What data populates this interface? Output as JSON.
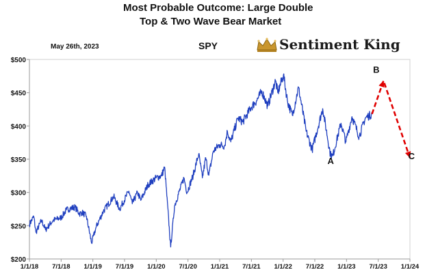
{
  "header": {
    "title_line1": "Most Probable Outcome: Large Double",
    "title_line2": "Top & Two Wave Bear Market",
    "date": "May 26th, 2023",
    "ticker": "SPY",
    "brand": "Sentiment King"
  },
  "chart_data": {
    "type": "line",
    "title": "Most Probable Outcome: Large Double Top & Two Wave Bear Market",
    "xlabel": "",
    "ylabel": "",
    "ylim": [
      200,
      500
    ],
    "yticks": [
      "$200",
      "$250",
      "$300",
      "$350",
      "$400",
      "$450",
      "$500"
    ],
    "ytick_values": [
      200,
      250,
      300,
      350,
      400,
      450,
      500
    ],
    "xticks": [
      "1/1/18",
      "7/1/18",
      "1/1/19",
      "7/1/19",
      "1/1/20",
      "7/1/20",
      "1/1/21",
      "7/1/21",
      "1/1/22",
      "7/1/22",
      "1/1/23",
      "7/1/23",
      "1/1/24"
    ],
    "xtick_years": [
      2018.0,
      2018.5,
      2019.0,
      2019.5,
      2020.0,
      2020.5,
      2021.0,
      2021.5,
      2022.0,
      2022.5,
      2023.0,
      2023.5,
      2024.0
    ],
    "xlim": [
      "1/1/18",
      "1/1/24"
    ],
    "grid": false,
    "series": [
      {
        "color": "#1f3fbf",
        "points": [
          [
            "1/1/18",
            252
          ],
          [
            "1/26/18",
            264
          ],
          [
            "2/8/18",
            240
          ],
          [
            "3/10/18",
            258
          ],
          [
            "4/2/18",
            244
          ],
          [
            "5/15/18",
            258
          ],
          [
            "7/1/18",
            262
          ],
          [
            "8/1/18",
            274
          ],
          [
            "9/20/18",
            278
          ],
          [
            "10/15/18",
            268
          ],
          [
            "11/1/18",
            270
          ],
          [
            "11/25/18",
            264
          ],
          [
            "12/24/18",
            224
          ],
          [
            "1/20/19",
            248
          ],
          [
            "3/1/19",
            272
          ],
          [
            "4/30/19",
            294
          ],
          [
            "6/3/19",
            275
          ],
          [
            "7/26/19",
            302
          ],
          [
            "8/15/19",
            283
          ],
          [
            "9/15/19",
            300
          ],
          [
            "10/3/19",
            288
          ],
          [
            "11/15/19",
            312
          ],
          [
            "12/31/19",
            322
          ],
          [
            "1/31/20",
            325
          ],
          [
            "2/19/20",
            338
          ],
          [
            "3/23/20",
            218
          ],
          [
            "4/15/20",
            280
          ],
          [
            "6/8/20",
            322
          ],
          [
            "6/26/20",
            300
          ],
          [
            "7/31/20",
            326
          ],
          [
            "9/2/20",
            358
          ],
          [
            "9/23/20",
            322
          ],
          [
            "10/12/20",
            352
          ],
          [
            "10/30/20",
            326
          ],
          [
            "11/25/20",
            362
          ],
          [
            "12/31/20",
            372
          ],
          [
            "1/29/21",
            370
          ],
          [
            "2/15/21",
            392
          ],
          [
            "3/4/21",
            376
          ],
          [
            "4/15/21",
            412
          ],
          [
            "5/12/21",
            406
          ],
          [
            "6/30/21",
            428
          ],
          [
            "7/31/21",
            438
          ],
          [
            "8/31/21",
            452
          ],
          [
            "10/4/21",
            430
          ],
          [
            "11/18/21",
            468
          ],
          [
            "12/1/21",
            450
          ],
          [
            "1/3/22",
            477
          ],
          [
            "1/27/22",
            436
          ],
          [
            "2/24/22",
            416
          ],
          [
            "3/29/22",
            458
          ],
          [
            "5/12/22",
            392
          ],
          [
            "6/16/22",
            364
          ],
          [
            "8/16/22",
            426
          ],
          [
            "9/30/22",
            357
          ],
          [
            "10/13/22",
            355
          ],
          [
            "11/30/22",
            404
          ],
          [
            "12/28/22",
            376
          ],
          [
            "2/2/23",
            414
          ],
          [
            "3/13/23",
            384
          ],
          [
            "4/18/23",
            412
          ],
          [
            "5/26/23",
            418
          ]
        ]
      },
      {
        "style": "dashed-arrow",
        "color": "#e00000",
        "points": [
          [
            "5/26/23",
            418
          ],
          [
            "8/1/23",
            468
          ],
          [
            "1/1/24",
            352
          ]
        ]
      }
    ],
    "annotations": [
      {
        "label": "A",
        "x": "10/1/22",
        "y": 343
      },
      {
        "label": "B",
        "x": "6/20/23",
        "y": 480
      },
      {
        "label": "C",
        "x": "1/10/24",
        "y": 350
      }
    ]
  }
}
